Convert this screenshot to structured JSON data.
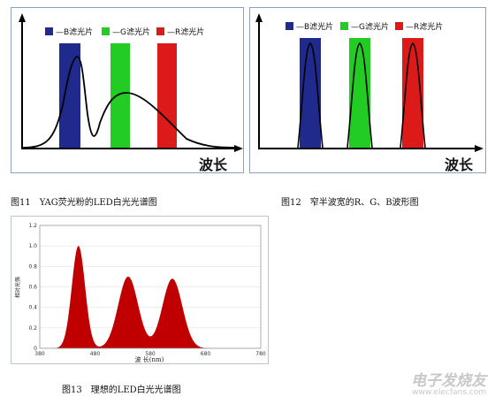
{
  "fig11": {
    "caption": "图11　YAG荧光粉的LED白光光谱图",
    "xlabel": "波长",
    "legend": [
      {
        "label": "—B滤光片",
        "color": "#1f2a8c"
      },
      {
        "label": "—G滤光片",
        "color": "#22cc22"
      },
      {
        "label": "—R滤光片",
        "color": "#dd1a1a"
      }
    ]
  },
  "fig12": {
    "caption": "图12　窄半波宽的R、G、B波形图",
    "xlabel": "波长",
    "legend": [
      {
        "label": "—B滤光片",
        "color": "#1f2a8c"
      },
      {
        "label": "—G滤光片",
        "color": "#22cc22"
      },
      {
        "label": "—R滤光片",
        "color": "#dd1a1a"
      }
    ]
  },
  "fig13": {
    "caption": "图13　理想的LED白光光谱图",
    "chart_data": {
      "type": "area",
      "ylabel": "相对光强",
      "xlabel": "波 长(nm)",
      "xlim": [
        380,
        780
      ],
      "ylim": [
        0,
        1.2
      ],
      "x_ticks": [
        "380",
        "480",
        "580",
        "680",
        "780"
      ],
      "y_ticks": [
        "0",
        "0.2",
        "0.4",
        "0.6",
        "0.8",
        "1.0",
        "1.2"
      ],
      "peaks": [
        {
          "center": 450,
          "height": 1.0
        },
        {
          "center": 540,
          "height": 0.7
        },
        {
          "center": 620,
          "height": 0.68
        }
      ]
    }
  },
  "watermark": {
    "cn": "电子发烧友",
    "en": "www.elecfans.com"
  }
}
